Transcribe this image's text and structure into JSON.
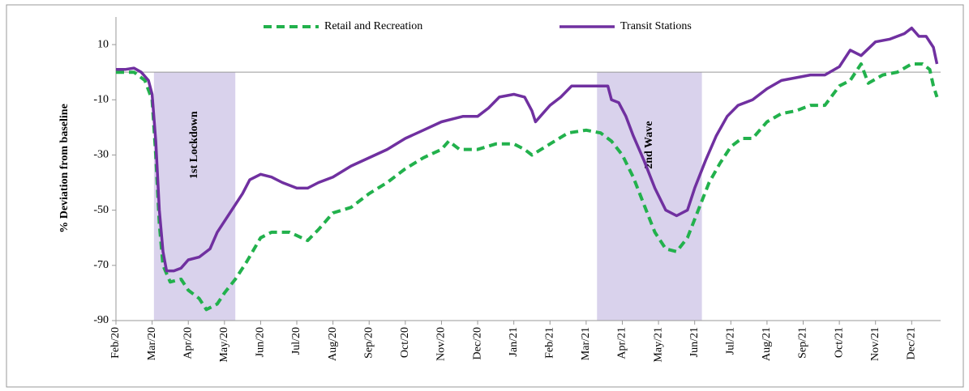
{
  "chart_data": {
    "type": "line",
    "y_label": "% Deviation from baseline",
    "legend": "top",
    "ylim": [
      -90,
      20
    ],
    "yticks": [
      10,
      -10,
      -30,
      -50,
      -70,
      -90
    ],
    "xlim": [
      0,
      22.8
    ],
    "xticks": [
      {
        "value": 0,
        "label": "Feb/20"
      },
      {
        "value": 1,
        "label": "Mar/20"
      },
      {
        "value": 2,
        "label": "Apr/20"
      },
      {
        "value": 3,
        "label": "May/20"
      },
      {
        "value": 4,
        "label": "Jun/20"
      },
      {
        "value": 5,
        "label": "Jul/20"
      },
      {
        "value": 6,
        "label": "Aug/20"
      },
      {
        "value": 7,
        "label": "Sep/20"
      },
      {
        "value": 8,
        "label": "Oct/20"
      },
      {
        "value": 9,
        "label": "Nov/20"
      },
      {
        "value": 10,
        "label": "Dec/20"
      },
      {
        "value": 11,
        "label": "Jan/21"
      },
      {
        "value": 12,
        "label": "Feb/21"
      },
      {
        "value": 13,
        "label": "Mar/21"
      },
      {
        "value": 14,
        "label": "Apr/21"
      },
      {
        "value": 15,
        "label": "May/21"
      },
      {
        "value": 16,
        "label": "Jun/21"
      },
      {
        "value": 17,
        "label": "Jul/21"
      },
      {
        "value": 18,
        "label": "Aug/21"
      },
      {
        "value": 19,
        "label": "Sep/21"
      },
      {
        "value": 20,
        "label": "Oct/21"
      },
      {
        "value": 21,
        "label": "Nov/21"
      },
      {
        "value": 22,
        "label": "Dec/21"
      }
    ],
    "shaded": [
      {
        "x0": 1.05,
        "x1": 3.3,
        "label": "1st Lockdown",
        "color": "#d9d2ec"
      },
      {
        "x0": 13.3,
        "x1": 16.2,
        "label": "2nd Wave",
        "color": "#d9d2ec"
      }
    ],
    "series": [
      {
        "name": "Retail and Recreation",
        "color": "#22b14c",
        "dash": true,
        "x": [
          0,
          0.5,
          0.8,
          1.0,
          1.1,
          1.2,
          1.3,
          1.5,
          1.8,
          2.0,
          2.3,
          2.5,
          2.8,
          3.0,
          3.3,
          3.6,
          4.0,
          4.3,
          4.8,
          5.3,
          5.6,
          6.0,
          6.5,
          7.0,
          7.5,
          8.0,
          8.5,
          9.0,
          9.2,
          9.5,
          10.0,
          10.5,
          11.0,
          11.3,
          11.5,
          12.0,
          12.5,
          13.0,
          13.4,
          13.7,
          14.0,
          14.3,
          14.6,
          14.9,
          15.2,
          15.5,
          15.8,
          16.1,
          16.4,
          16.7,
          17.0,
          17.3,
          17.6,
          18.0,
          18.4,
          18.8,
          19.2,
          19.6,
          20.0,
          20.3,
          20.6,
          20.8,
          21.2,
          21.6,
          22.0,
          22.3,
          22.5,
          22.6,
          22.7
        ],
        "values": [
          0,
          0,
          -3,
          -10,
          -30,
          -55,
          -70,
          -76,
          -75,
          -79,
          -82,
          -86,
          -84,
          -80,
          -75,
          -69,
          -60,
          -58,
          -58,
          -61,
          -57,
          -51,
          -49,
          -44,
          -40,
          -35,
          -31,
          -28,
          -25,
          -28,
          -28,
          -26,
          -26,
          -28,
          -30,
          -26,
          -22,
          -21,
          -22,
          -25,
          -30,
          -38,
          -48,
          -58,
          -64,
          -65,
          -60,
          -50,
          -40,
          -33,
          -27,
          -24,
          -24,
          -18,
          -15,
          -14,
          -12,
          -12,
          -5,
          -3,
          3,
          -4,
          -1,
          0,
          3,
          3,
          1,
          -5,
          -9
        ]
      },
      {
        "name": "Transit Stations",
        "color": "#7030a0",
        "dash": false,
        "x": [
          0,
          0.25,
          0.5,
          0.7,
          0.9,
          1.0,
          1.1,
          1.2,
          1.3,
          1.4,
          1.6,
          1.8,
          2.0,
          2.3,
          2.6,
          2.8,
          3.0,
          3.3,
          3.5,
          3.7,
          4.0,
          4.3,
          4.6,
          5.0,
          5.3,
          5.6,
          6.0,
          6.5,
          7.0,
          7.5,
          8.0,
          8.5,
          9.0,
          9.3,
          9.6,
          10.0,
          10.3,
          10.6,
          11.0,
          11.3,
          11.5,
          11.6,
          11.8,
          12.0,
          12.3,
          12.6,
          13.0,
          13.3,
          13.6,
          13.7,
          13.9,
          14.1,
          14.3,
          14.6,
          14.9,
          15.2,
          15.5,
          15.8,
          16.0,
          16.3,
          16.6,
          16.9,
          17.2,
          17.6,
          18.0,
          18.4,
          18.8,
          19.2,
          19.6,
          20.0,
          20.3,
          20.6,
          21.0,
          21.4,
          21.8,
          22.0,
          22.2,
          22.4,
          22.6,
          22.7
        ],
        "values": [
          1,
          1,
          1.5,
          0,
          -3,
          -8,
          -25,
          -50,
          -65,
          -72,
          -72,
          -71,
          -68,
          -67,
          -64,
          -58,
          -54,
          -48,
          -44,
          -39,
          -37,
          -38,
          -40,
          -42,
          -42,
          -40,
          -38,
          -34,
          -31,
          -28,
          -24,
          -21,
          -18,
          -17,
          -16,
          -16,
          -13,
          -9,
          -8,
          -9,
          -14,
          -18,
          -15,
          -12,
          -9,
          -5,
          -5,
          -5,
          -5,
          -10,
          -11,
          -16,
          -23,
          -32,
          -42,
          -50,
          -52,
          -50,
          -42,
          -32,
          -23,
          -16,
          -12,
          -10,
          -6,
          -3,
          -2,
          -1,
          -1,
          2,
          8,
          6,
          11,
          12,
          14,
          16,
          13,
          13,
          9,
          3
        ]
      }
    ]
  }
}
